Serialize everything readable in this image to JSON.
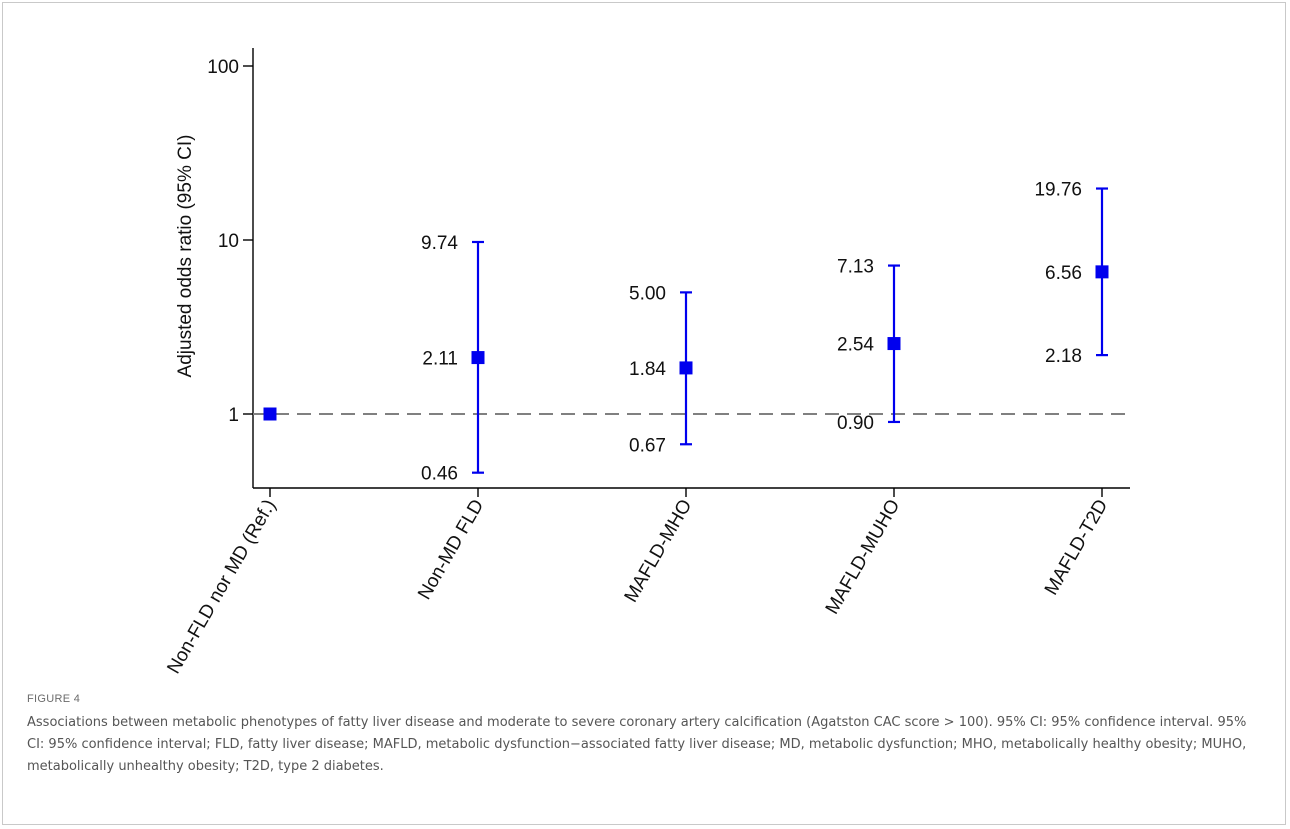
{
  "figure": {
    "label": "FIGURE 4",
    "caption": "Associations between metabolic phenotypes of fatty liver disease and moderate to severe coronary artery calcification (Agatston CAC score > 100). 95% CI: 95% confidence interval. 95% CI: 95% confidence interval; FLD, fatty liver disease; MAFLD, metabolic dysfunction−associated fatty liver disease; MD, metabolic dysfunction; MHO, metabolically healthy obesity; MUHO, metabolically unhealthy obesity; T2D, type 2 diabetes."
  },
  "chart_data": {
    "type": "scatter",
    "title": "",
    "xlabel": "",
    "ylabel": "Adjusted odds ratio (95% CI)",
    "yscale": "log",
    "ylim": [
      0.4,
      100
    ],
    "yticks": [
      {
        "value": 1,
        "label": "1"
      },
      {
        "value": 10,
        "label": "10"
      },
      {
        "value": 100,
        "label": "100"
      }
    ],
    "reference_line": {
      "y": 1,
      "style": "dashed",
      "color": "#808080"
    },
    "marker_color": "#0000ee",
    "grid": false,
    "legend": "none",
    "categories": [
      "Non-FLD nor MD (Ref.)",
      "Non-MD FLD",
      "MAFLD-MHO",
      "MAFLD-MUHO",
      "MAFLD-T2D"
    ],
    "points": [
      {
        "category": "Non-FLD nor MD (Ref.)",
        "estimate": 1.0,
        "lower": null,
        "upper": null,
        "estimate_label": "",
        "lower_label": "",
        "upper_label": ""
      },
      {
        "category": "Non-MD FLD",
        "estimate": 2.11,
        "lower": 0.46,
        "upper": 9.74,
        "estimate_label": "2.11",
        "lower_label": "0.46",
        "upper_label": "9.74"
      },
      {
        "category": "MAFLD-MHO",
        "estimate": 1.84,
        "lower": 0.67,
        "upper": 5.0,
        "estimate_label": "1.84",
        "lower_label": "0.67",
        "upper_label": "5.00"
      },
      {
        "category": "MAFLD-MUHO",
        "estimate": 2.54,
        "lower": 0.9,
        "upper": 7.13,
        "estimate_label": "2.54",
        "lower_label": "0.90",
        "upper_label": "7.13"
      },
      {
        "category": "MAFLD-T2D",
        "estimate": 6.56,
        "lower": 2.18,
        "upper": 19.76,
        "estimate_label": "6.56",
        "lower_label": "2.18",
        "upper_label": "19.76"
      }
    ]
  }
}
